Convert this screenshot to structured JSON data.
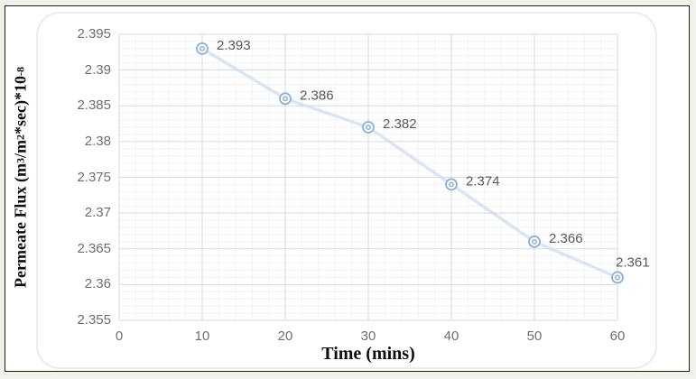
{
  "window": {
    "background_outer": "#f2f0ea",
    "border_color": "#1d1d1d",
    "inner_background": "#ffffff",
    "chart_frame_border": "#ececec"
  },
  "chart_data": {
    "type": "line",
    "title": "",
    "legend": "none",
    "grid": "major+minor",
    "x": [
      10,
      20,
      30,
      40,
      50,
      60
    ],
    "y": [
      2.393,
      2.386,
      2.382,
      2.374,
      2.366,
      2.361
    ],
    "point_labels": [
      "2.393",
      "2.386",
      "2.382",
      "2.374",
      "2.366",
      "2.361"
    ],
    "label_placements": [
      "right",
      "right",
      "right",
      "right",
      "right",
      "above"
    ],
    "xlabel": "Time (mins)",
    "ylabel_plain": "Permeate Flux (m3/m2*sec)*10-8",
    "ylabel_parts": [
      {
        "t": "Permeate Flux (m"
      },
      {
        "t": "3",
        "sup": true
      },
      {
        "t": "/m"
      },
      {
        "t": "2",
        "sup": true
      },
      {
        "t": "*sec)*10"
      },
      {
        "t": "-8",
        "sup": true
      }
    ],
    "xlim": [
      0,
      60
    ],
    "ylim": [
      2.355,
      2.395
    ],
    "x_ticks": [
      {
        "v": 0,
        "label": "0"
      },
      {
        "v": 10,
        "label": "10"
      },
      {
        "v": 20,
        "label": "20"
      },
      {
        "v": 30,
        "label": "30"
      },
      {
        "v": 40,
        "label": "40"
      },
      {
        "v": 50,
        "label": "50"
      },
      {
        "v": 60,
        "label": "60"
      }
    ],
    "y_ticks": [
      {
        "v": 2.395,
        "label": "2.395"
      },
      {
        "v": 2.39,
        "label": "2.39"
      },
      {
        "v": 2.385,
        "label": "2.385"
      },
      {
        "v": 2.38,
        "label": "2.38"
      },
      {
        "v": 2.375,
        "label": "2.375"
      },
      {
        "v": 2.37,
        "label": "2.37"
      },
      {
        "v": 2.365,
        "label": "2.365"
      },
      {
        "v": 2.36,
        "label": "2.36"
      },
      {
        "v": 2.355,
        "label": "2.355"
      }
    ],
    "minor_x_step": 2,
    "minor_y_step": 0.001,
    "colors": {
      "grid_minor": "#f2f2f2",
      "grid_major": "#dadada",
      "line_soft": "#c3d8f0",
      "line_core": "#cfe1f4",
      "marker_stroke": "#87b1dd",
      "marker_fill": "#ffffff",
      "data_label": "#595959",
      "tick_label": "#6e6e6e",
      "axis_title": "#0d0d0d"
    }
  }
}
